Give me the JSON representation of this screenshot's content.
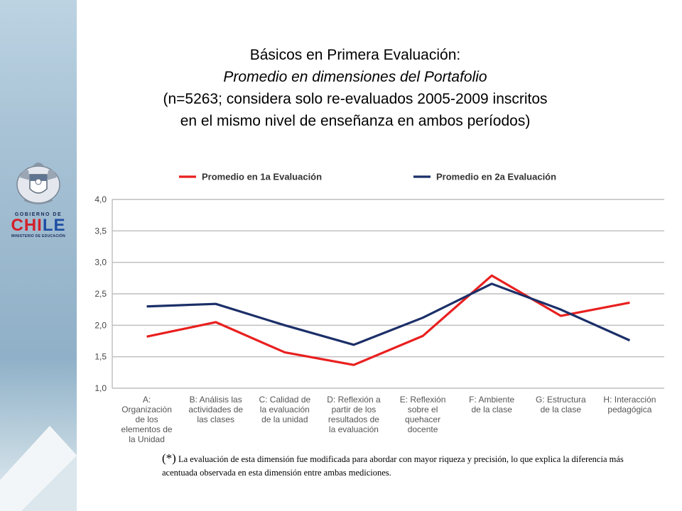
{
  "title": {
    "line1": "Básicos en Primera Evaluación:",
    "line2": "Promedio en dimensiones del Portafolio",
    "line3": "(n=5263; considera solo re-evaluados 2005-2009 inscritos",
    "line4": "en el mismo nivel de enseñanza en ambos períodos)"
  },
  "logo": {
    "line1": "GOBIERNO DE",
    "word_a": "CHI",
    "word_b": "LE",
    "line3": "MINISTERIO DE EDUCACIÓN"
  },
  "colors": {
    "series1": "#e8201f",
    "series2": "#1b2f68",
    "grid": "#bdbdbd"
  },
  "chart_data": {
    "type": "line",
    "categories": [
      [
        "A:",
        "Organización",
        "de los",
        "elementos de",
        "la Unidad"
      ],
      [
        "B: Análisis las",
        "actividades de",
        "las clases"
      ],
      [
        "C: Calidad de",
        "la evaluación",
        "de la unidad"
      ],
      [
        "D: Reflexión a",
        "partir de los",
        "resultados de",
        "la evaluación"
      ],
      [
        "E: Reflexión",
        "sobre el",
        "quehacer",
        "docente"
      ],
      [
        "F: Ambiente",
        "de la clase"
      ],
      [
        "G: Estructura",
        "de la clase"
      ],
      [
        "H: Interacción",
        "pedagógica"
      ]
    ],
    "series": [
      {
        "name": "Promedio en 1a Evaluación",
        "values": [
          1.82,
          2.05,
          1.57,
          1.37,
          1.83,
          2.79,
          2.15,
          2.36
        ]
      },
      {
        "name": "Promedio en 2a Evaluación",
        "values": [
          2.3,
          2.34,
          2.0,
          1.69,
          2.12,
          2.66,
          2.25,
          1.76
        ]
      }
    ],
    "yticks": [
      "4,0",
      "3,5",
      "3,0",
      "2,5",
      "2,0",
      "1,5",
      "1,0"
    ],
    "ylim": [
      1.0,
      4.0
    ],
    "grid": true,
    "legend": "top"
  },
  "footnote": {
    "mark": "(*)",
    "text": " La evaluación de esta dimensión fue modificada para abordar con mayor riqueza y precisión, lo que explica la diferencia más acentuada observada en esta dimensión entre ambas mediciones."
  }
}
